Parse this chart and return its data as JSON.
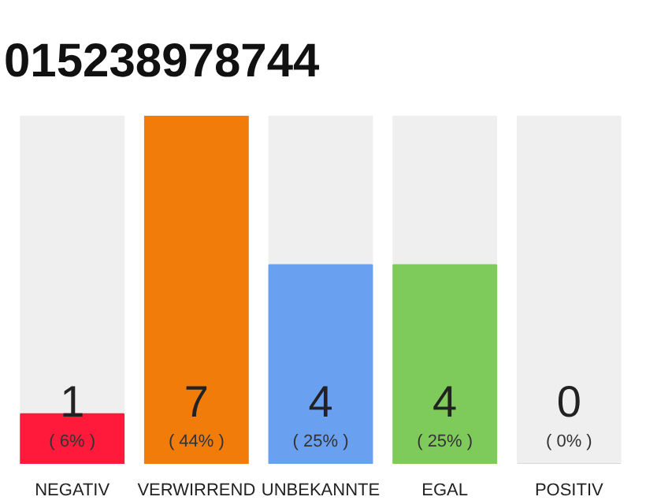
{
  "chart_data": {
    "type": "bar",
    "title": "015238978744",
    "categories": [
      "NEGATIV",
      "VERWIRREND",
      "UNBEKANNTE",
      "EGAL",
      "POSITIV"
    ],
    "values": [
      1,
      7,
      4,
      4,
      0
    ],
    "colors": [
      "#ff1a3c",
      "#f27c0a",
      "#6aa0f0",
      "#7ecb5c",
      "#d8d8d8"
    ],
    "ylim": [
      0,
      7
    ],
    "data_labels": true,
    "tick_labels": "x",
    "grid": false,
    "annotations": [
      {
        "text": "( 6% )",
        "x": "NEGATIV",
        "y": 0
      },
      {
        "text": "( 44% )",
        "x": "VERWIRREND",
        "y": 0
      },
      {
        "text": "( 25% )",
        "x": "UNBEKANNTE",
        "y": 0
      },
      {
        "text": "( 25% )",
        "x": "EGAL",
        "y": 0
      },
      {
        "text": "( 0% )",
        "x": "POSITIV",
        "y": 0
      }
    ]
  }
}
